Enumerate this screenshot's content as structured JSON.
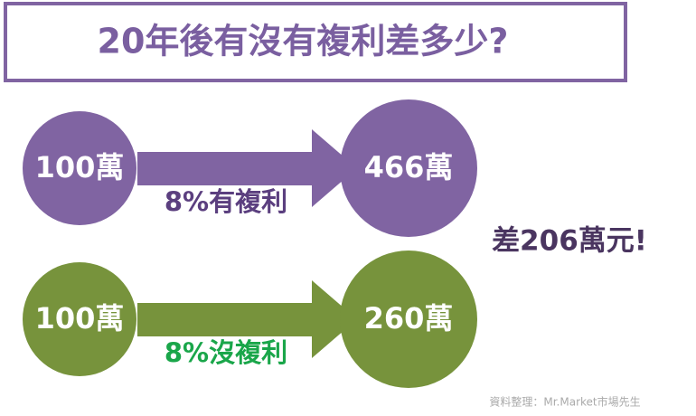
{
  "title": "20年後有沒有複利差多少?",
  "rows": [
    {
      "start": "100萬",
      "end": "466萬",
      "label": "8%有複利"
    },
    {
      "start": "100萬",
      "end": "260萬",
      "label": "8%沒複利"
    }
  ],
  "difference": "差206萬元!",
  "source": "資料整理：Mr.Market市場先生"
}
